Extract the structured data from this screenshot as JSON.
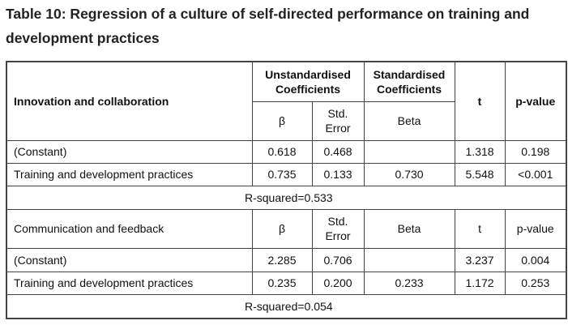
{
  "title": "Table 10: Regression of a culture of self-directed performance on training and development practices",
  "sections": [
    {
      "header": {
        "label": "Innovation and collaboration",
        "unstd": "Unstandardised Coefficients",
        "std": "Standardised Coefficients",
        "b": "β",
        "se": "Std. Error",
        "beta": "Beta",
        "t": "t",
        "p": "p-value"
      },
      "rows": [
        {
          "label": "(Constant)",
          "b": "0.618",
          "se": "0.468",
          "t": "1.318",
          "p": "0.198"
        },
        {
          "label": "Training and development practices",
          "b": "0.735",
          "se": "0.133",
          "beta": "0.730",
          "t": "5.548",
          "p": "<0.001"
        }
      ],
      "r_squared": "R-squared=0.533"
    },
    {
      "header": {
        "label": "Communication and feedback",
        "b": "β",
        "se": "Std. Error",
        "beta": "Beta",
        "t": "t",
        "p": "p-value"
      },
      "rows": [
        {
          "label": "(Constant)",
          "b": "2.285",
          "se": "0.706",
          "t": "3.237",
          "p": "0.004"
        },
        {
          "label": "Training and development practices",
          "b": "0.235",
          "se": "0.200",
          "beta": "0.233",
          "t": "1.172",
          "p": "0.253"
        }
      ],
      "r_squared": "R-squared=0.054"
    }
  ]
}
